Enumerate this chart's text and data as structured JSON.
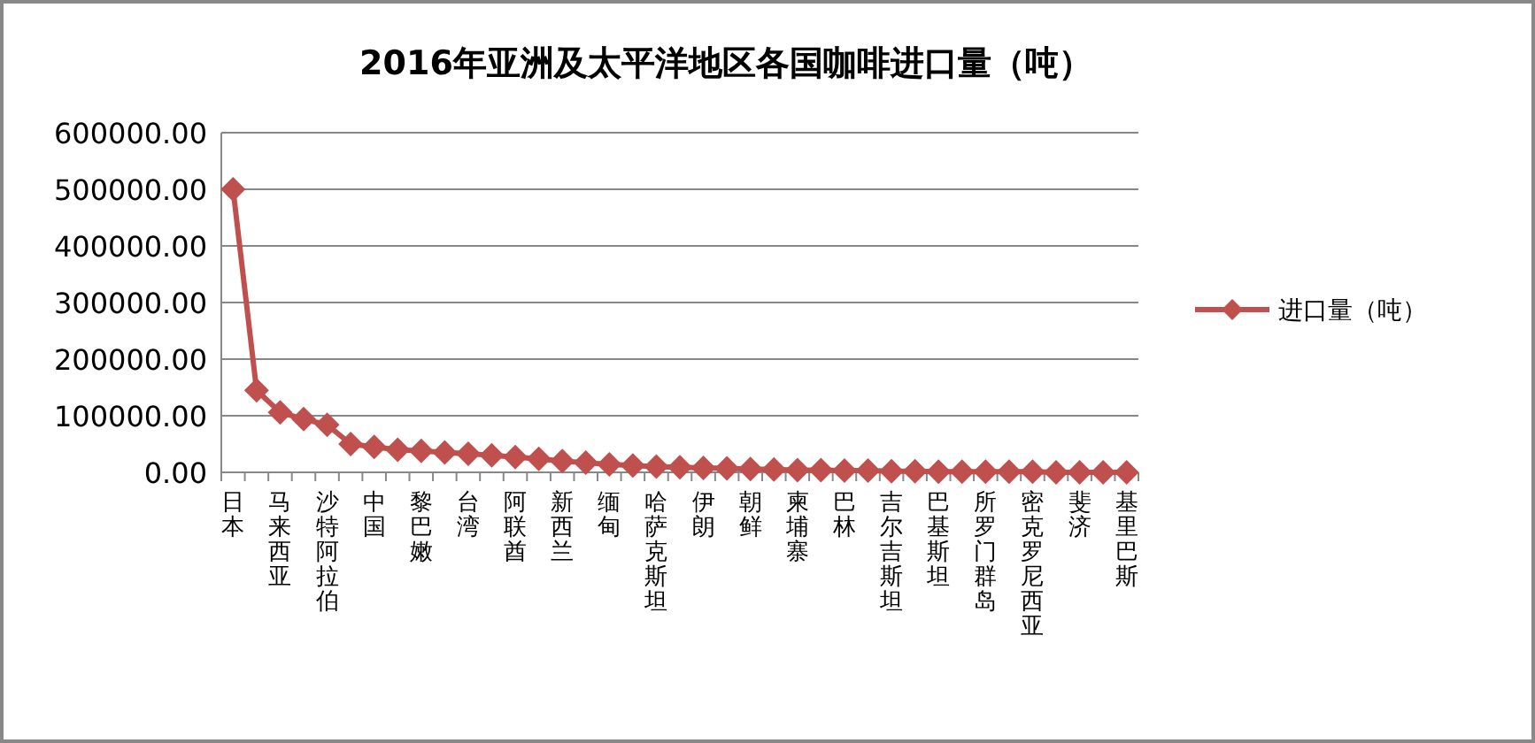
{
  "chart_data": {
    "type": "line",
    "title": "2016年亚洲及太平洋地区各国咖啡进口量（吨）",
    "categories": [
      "日本",
      null,
      "马来西亚",
      null,
      "沙特阿拉伯",
      null,
      "中国",
      null,
      "黎巴嫩",
      null,
      "台湾",
      null,
      "阿联酋",
      null,
      "新西兰",
      null,
      "缅甸",
      null,
      "哈萨克斯坦",
      null,
      "伊朗",
      null,
      "朝鲜",
      null,
      "柬埔寨",
      null,
      "巴林",
      null,
      "吉尔吉斯坦",
      null,
      "巴基斯坦",
      null,
      "所罗门群岛",
      null,
      "密克罗尼西亚",
      null,
      "斐济",
      null,
      "基里巴斯"
    ],
    "series": [
      {
        "name": "进口量（吨）",
        "color": "#c0504d",
        "values": [
          500000,
          145000,
          106000,
          94000,
          84000,
          50000,
          45000,
          40000,
          38000,
          35000,
          33000,
          30000,
          27000,
          24000,
          20000,
          17000,
          14000,
          12000,
          10000,
          9000,
          8000,
          7000,
          6000,
          5000,
          4000,
          4000,
          3000,
          3000,
          2000,
          2000,
          1000,
          1000,
          1000,
          1000,
          1000,
          0,
          0,
          0,
          0
        ]
      }
    ],
    "ylim": [
      0,
      600000
    ],
    "yticks": [
      {
        "value": 0,
        "label": "0.00"
      },
      {
        "value": 100000,
        "label": "100000.00"
      },
      {
        "value": 200000,
        "label": "200000.00"
      },
      {
        "value": 300000,
        "label": "300000.00"
      },
      {
        "value": 400000,
        "label": "400000.00"
      },
      {
        "value": 500000,
        "label": "500000.00"
      },
      {
        "value": 600000,
        "label": "600000.00"
      }
    ],
    "grid": "y",
    "legend": "right",
    "marker": "diamond",
    "line_style": "solid"
  }
}
